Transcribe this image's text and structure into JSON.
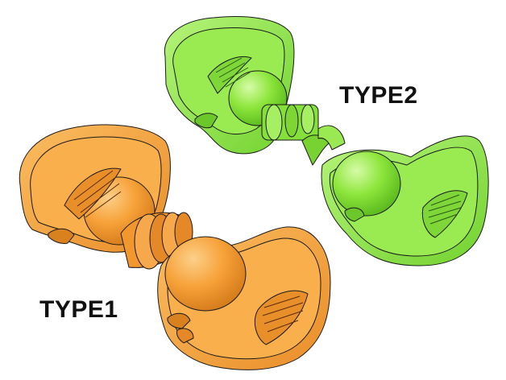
{
  "labels": {
    "type1": "TYPE1",
    "type2": "TYPE2"
  },
  "colors": {
    "background": "#ffffff",
    "orange_main": "#f7a23a",
    "orange_light": "#fbc06a",
    "orange_dark": "#d9801f",
    "green_main": "#8ee63c",
    "green_light": "#b8f57a",
    "green_dark": "#5fc21e",
    "outline": "#1a1a1a"
  }
}
